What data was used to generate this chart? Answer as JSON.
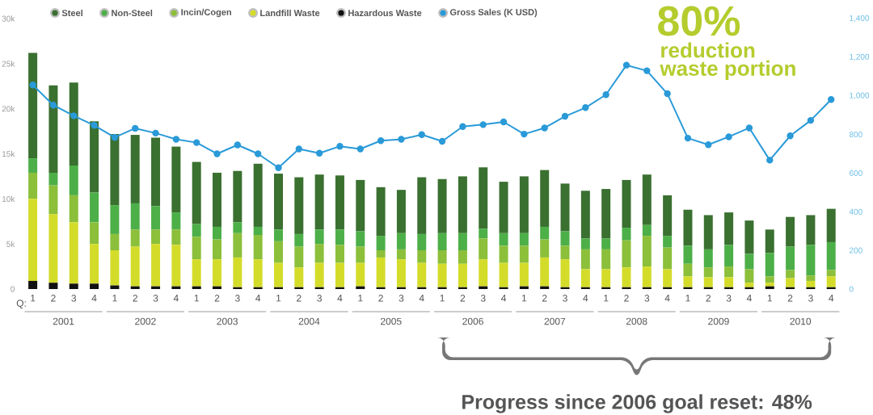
{
  "chart_data": {
    "type": "bar",
    "stacked": true,
    "legend": "top",
    "marker": "circle",
    "categories": [
      "1",
      "2",
      "3",
      "4",
      "1",
      "2",
      "3",
      "4",
      "1",
      "2",
      "3",
      "4",
      "1",
      "2",
      "3",
      "4",
      "1",
      "2",
      "3",
      "4",
      "1",
      "2",
      "3",
      "4",
      "1",
      "2",
      "3",
      "4",
      "1",
      "2",
      "3",
      "4",
      "1",
      "2",
      "3",
      "4",
      "1",
      "2",
      "3",
      "4"
    ],
    "series": [
      {
        "name": "Hazardous Waste",
        "color": "#111111",
        "values": [
          900,
          700,
          600,
          600,
          400,
          300,
          300,
          300,
          300,
          300,
          200,
          200,
          200,
          200,
          200,
          200,
          300,
          200,
          200,
          200,
          200,
          200,
          300,
          200,
          300,
          300,
          200,
          200,
          200,
          200,
          200,
          200,
          200,
          200,
          200,
          200,
          300,
          200,
          200,
          200
        ]
      },
      {
        "name": "Landfill Waste",
        "color": "#d4dc2a",
        "values": [
          9100,
          7600,
          6800,
          4400,
          3900,
          4400,
          4700,
          4600,
          3000,
          3000,
          3300,
          3100,
          2700,
          2200,
          2700,
          2700,
          2600,
          3300,
          3100,
          2700,
          2600,
          2600,
          3000,
          2700,
          2600,
          3200,
          3100,
          2000,
          2000,
          2200,
          2300,
          2000,
          1200,
          1100,
          1100,
          500,
          400,
          1000,
          700,
          1200
        ]
      },
      {
        "name": "Incin/Cogen",
        "color": "#8cbf3a",
        "values": [
          2900,
          3200,
          3000,
          2400,
          1800,
          1900,
          1600,
          1700,
          2500,
          2200,
          2700,
          2700,
          2400,
          2300,
          2100,
          2000,
          1800,
          800,
          1100,
          1400,
          1500,
          1500,
          2300,
          1900,
          1900,
          2000,
          1500,
          2200,
          2200,
          3000,
          3400,
          2400,
          1400,
          1100,
          1200,
          1500,
          700,
          900,
          600,
          700
        ]
      },
      {
        "name": "Non-Steel",
        "color": "#4caf48",
        "values": [
          1600,
          1400,
          3300,
          3300,
          3200,
          2900,
          2600,
          1900,
          1400,
          1400,
          1200,
          900,
          1300,
          1400,
          1600,
          1700,
          1700,
          1600,
          1800,
          1800,
          1900,
          1900,
          1100,
          1400,
          1400,
          1400,
          1600,
          1200,
          1200,
          1400,
          1200,
          1300,
          2000,
          2000,
          2400,
          1700,
          2600,
          2600,
          3400,
          3100
        ]
      },
      {
        "name": "Steel",
        "color": "#3a7030",
        "values": [
          11700,
          9700,
          9200,
          7900,
          7900,
          7600,
          7600,
          7300,
          6900,
          6000,
          5700,
          7000,
          6200,
          6300,
          6100,
          6000,
          5700,
          5400,
          4800,
          6300,
          6000,
          6300,
          6800,
          5700,
          6300,
          6300,
          5300,
          5300,
          5500,
          5300,
          5600,
          4500,
          4000,
          3800,
          3600,
          3700,
          2600,
          3300,
          3300,
          3700
        ]
      },
      {
        "name": "Gross Sales (K USD)",
        "color": "#2a9ad8",
        "type": "line",
        "axis": "y2",
        "values": [
          1056,
          952,
          897,
          847,
          785,
          832,
          807,
          775,
          758,
          700,
          746,
          700,
          628,
          725,
          703,
          739,
          725,
          768,
          775,
          799,
          765,
          841,
          851,
          865,
          802,
          834,
          894,
          939,
          1006,
          1159,
          1130,
          1011,
          781,
          747,
          788,
          834,
          667,
          793,
          873,
          981
        ]
      }
    ],
    "ylim": [
      0,
      30000
    ],
    "yticks": [
      0,
      {
        "value": 5000,
        "label": "5k"
      },
      {
        "value": 10000,
        "label": "10k"
      },
      {
        "value": 15000,
        "label": "15k"
      },
      {
        "value": 20000,
        "label": "20k"
      },
      {
        "value": 25000,
        "label": "25k"
      },
      {
        "value": 30000,
        "label": "30k"
      }
    ],
    "y2lim": [
      0,
      1400
    ],
    "y2ticks": [
      0,
      200,
      400,
      600,
      800,
      {
        "value": 1000,
        "label": "1,000"
      },
      {
        "value": 1200,
        "label": "1,200"
      },
      {
        "value": 1400,
        "label": "1,400"
      }
    ],
    "annotations": [
      "2001",
      "2002",
      "2003",
      "2004",
      "2005",
      "2006",
      "2007",
      "2008",
      "2009",
      "2010",
      "Q:",
      "80%",
      "reduction",
      "waste portion",
      "Progress since 2006 goal reset: 48%"
    ]
  }
}
